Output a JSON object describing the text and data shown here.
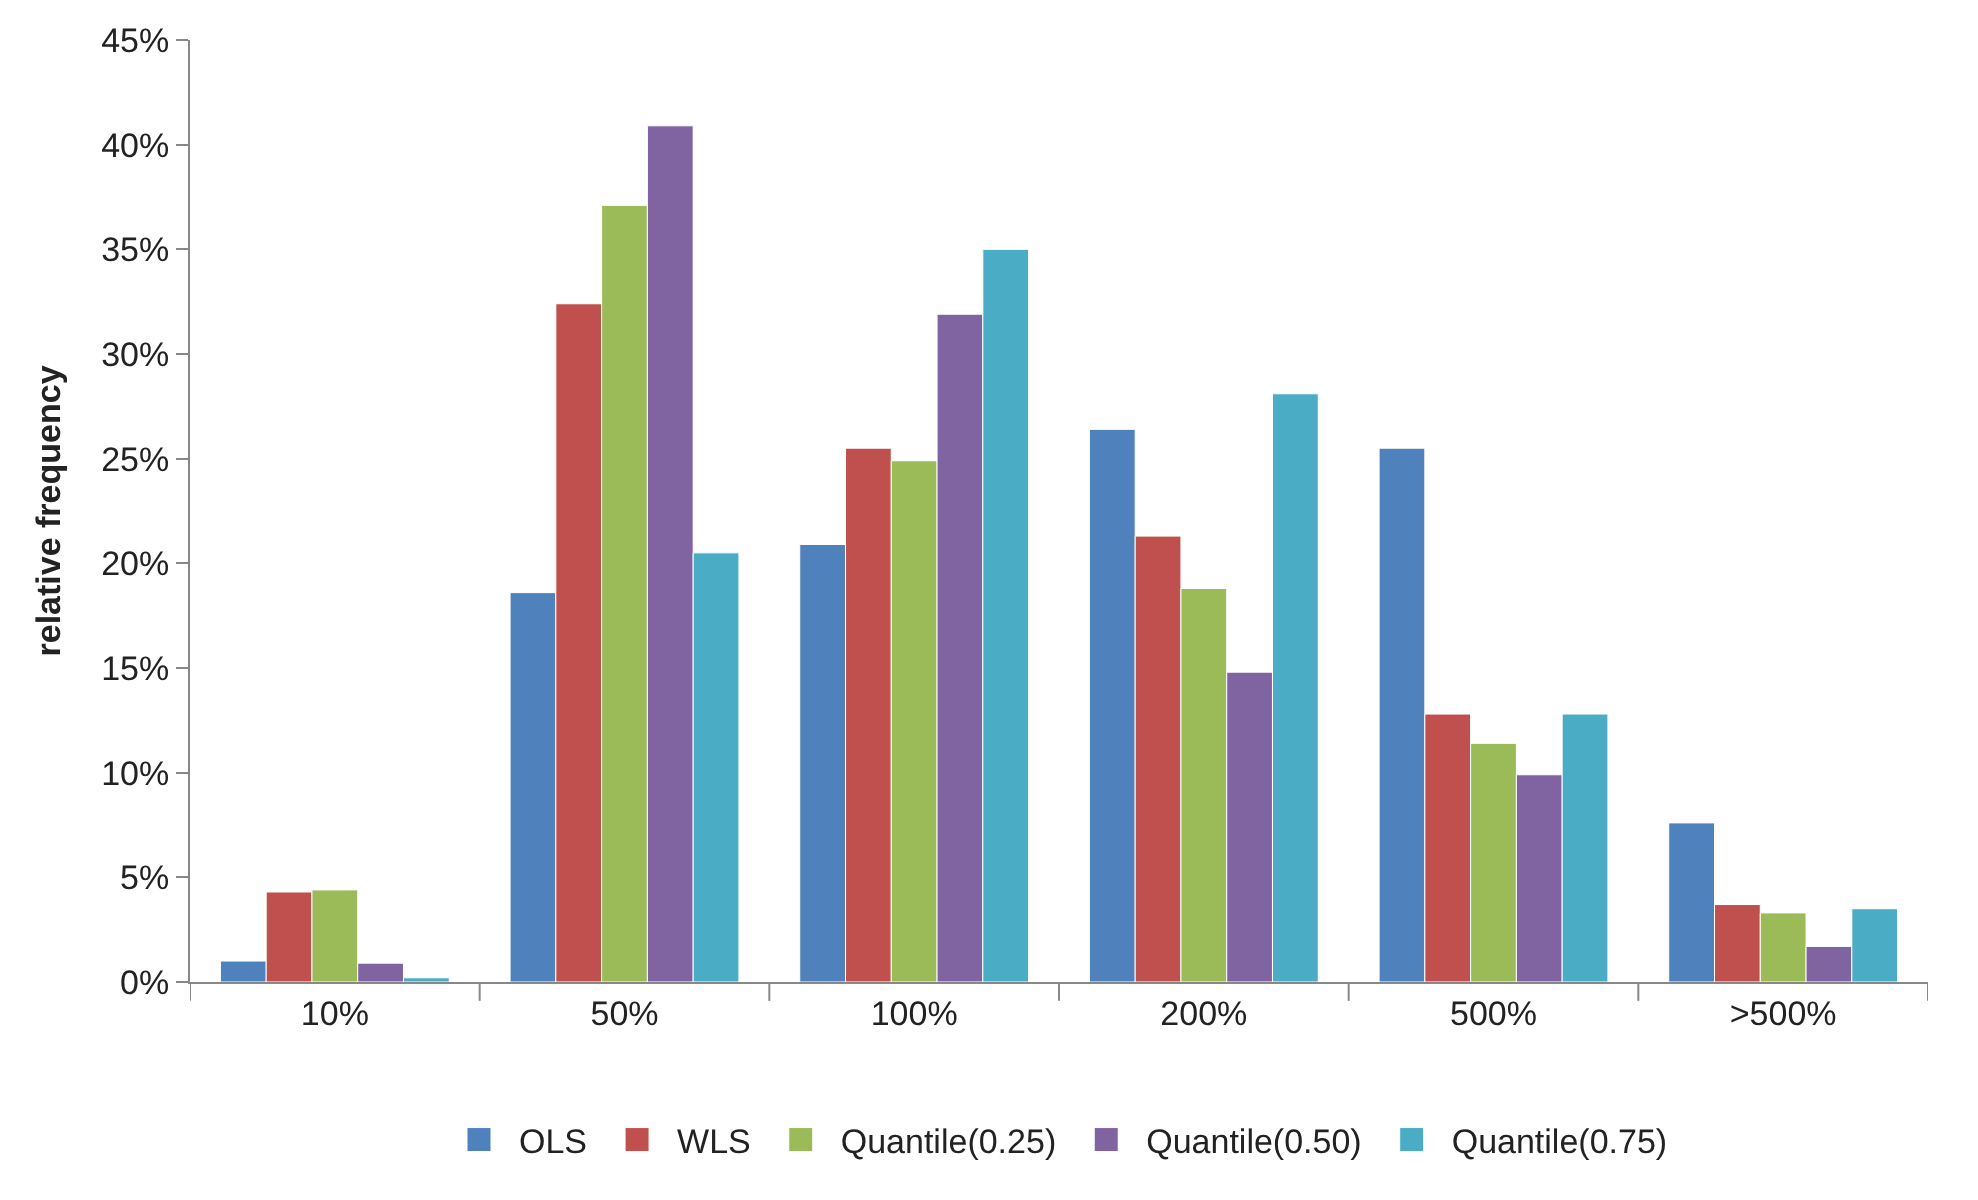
{
  "chart_data": {
    "type": "bar",
    "ylabel": "relative frequency",
    "categories": [
      "10%",
      "50%",
      "100%",
      "200%",
      "500%",
      ">500%"
    ],
    "series": [
      {
        "name": "OLS",
        "color": "#4f81bd",
        "values": [
          1.0,
          18.6,
          20.9,
          26.4,
          25.5,
          7.6
        ]
      },
      {
        "name": "WLS",
        "color": "#c0504d",
        "values": [
          4.3,
          32.4,
          25.5,
          21.3,
          12.8,
          3.7
        ]
      },
      {
        "name": "Quantile(0.25)",
        "color": "#9bbb59",
        "values": [
          4.4,
          37.1,
          24.9,
          18.8,
          11.4,
          3.3
        ]
      },
      {
        "name": "Quantile(0.50)",
        "color": "#8064a2",
        "values": [
          0.9,
          40.9,
          31.9,
          14.8,
          9.9,
          1.7
        ]
      },
      {
        "name": "Quantile(0.75)",
        "color": "#4bacc6",
        "values": [
          0.2,
          20.5,
          35.0,
          28.1,
          12.8,
          3.5
        ]
      }
    ],
    "ylim": [
      0,
      45
    ],
    "yticks": [
      {
        "value": 0,
        "label": "0%"
      },
      {
        "value": 5,
        "label": "5%"
      },
      {
        "value": 10,
        "label": "10%"
      },
      {
        "value": 15,
        "label": "15%"
      },
      {
        "value": 20,
        "label": "20%"
      },
      {
        "value": 25,
        "label": "25%"
      },
      {
        "value": 30,
        "label": "30%"
      },
      {
        "value": 35,
        "label": "35%"
      },
      {
        "value": 40,
        "label": "40%"
      },
      {
        "value": 45,
        "label": "45%"
      }
    ],
    "legend": "bottom"
  }
}
